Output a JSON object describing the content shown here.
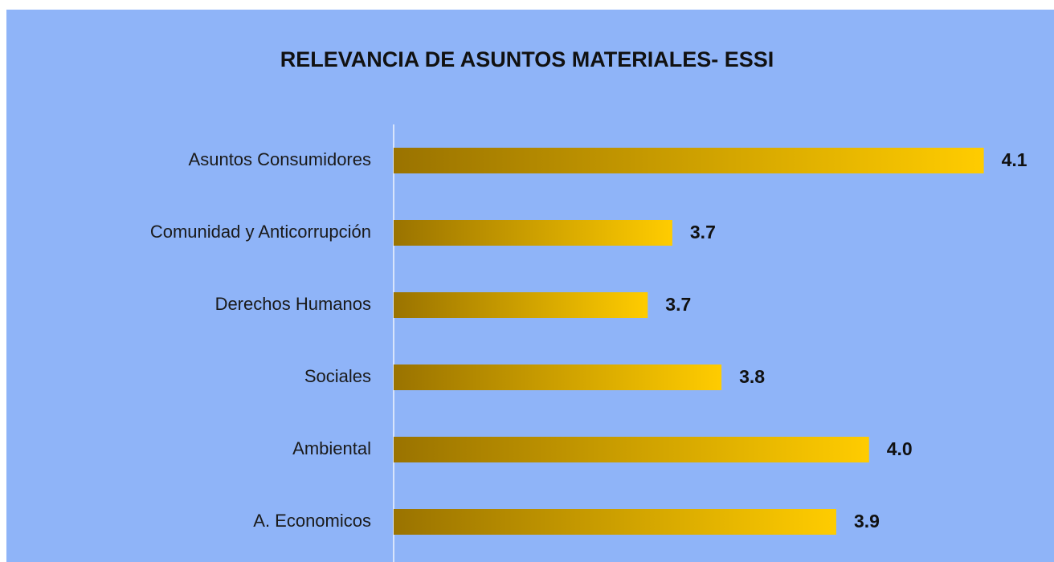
{
  "chart_data": {
    "type": "hbar",
    "title": "RELEVANCIA DE  ASUNTOS MATERIALES- ESSI",
    "categories": [
      "Asuntos Consumidores",
      "Comunidad y Anticorrupción",
      "Derechos Humanos",
      "Sociales",
      "Ambiental",
      "A. Economicos"
    ],
    "values": [
      4.1,
      3.72,
      3.69,
      3.78,
      3.96,
      3.92
    ],
    "value_labels": [
      "4.1",
      "3.7",
      "3.7",
      "3.8",
      "4.0",
      "3.9"
    ],
    "xlim": [
      3.38,
      4.12
    ],
    "gradient": [
      "#9a7300",
      "#ffcc00"
    ],
    "background": "#8fb4f8"
  }
}
